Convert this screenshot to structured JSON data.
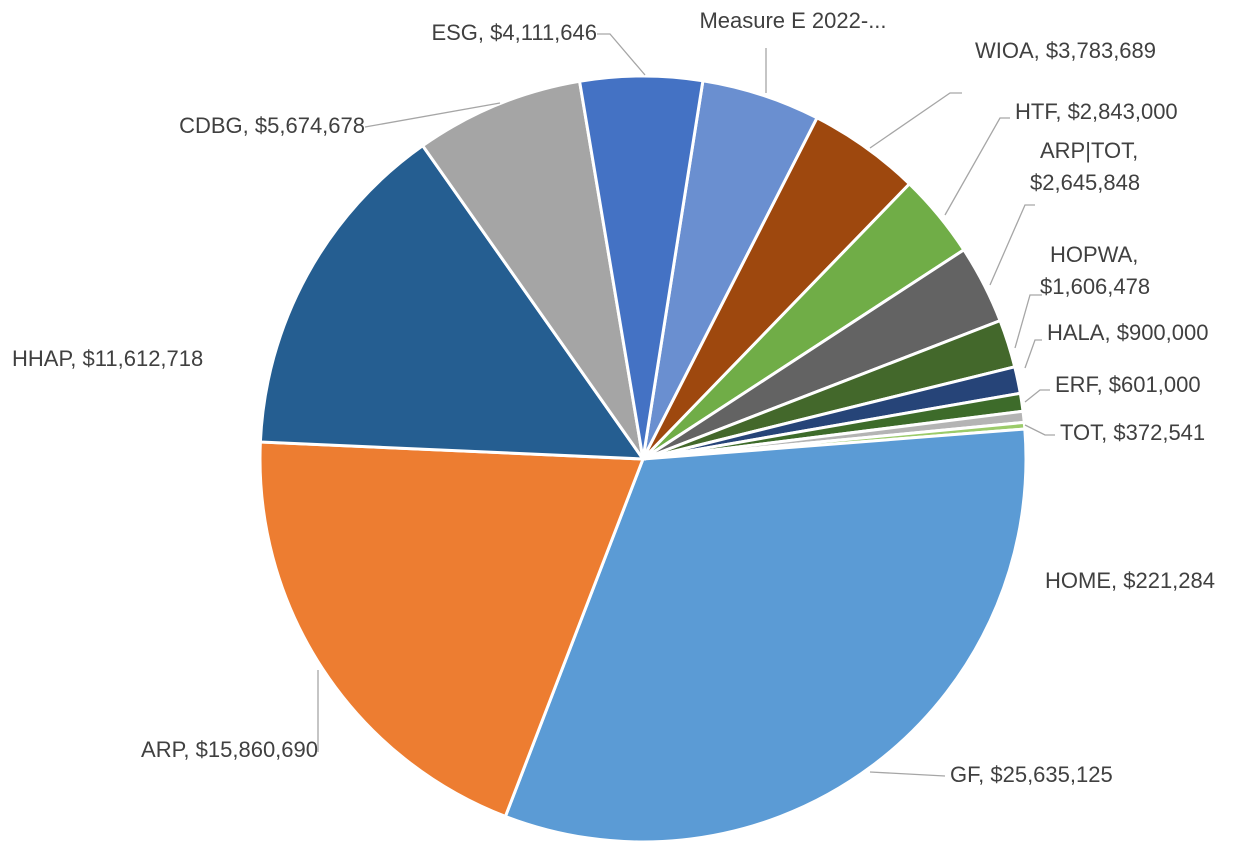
{
  "chart_data": {
    "type": "pie",
    "categories": [
      "Measure E 2022-...",
      "WIOA",
      "HTF",
      "ARP|TOT",
      "HOPWA",
      "HALA",
      "ERF",
      "TOT",
      "HOME",
      "GF",
      "ARP",
      "HHAP",
      "CDBG",
      "ESG"
    ],
    "values": [
      4000000,
      3783689,
      2843000,
      2645848,
      1606478,
      900000,
      601000,
      372541,
      221284,
      25635125,
      15860690,
      11612718,
      5674678,
      4111646
    ],
    "value_labels": [
      null,
      "$3,783,689",
      "$2,843,000",
      "$2,645,848",
      "$1,606,478",
      "$900,000",
      "$601,000",
      "$372,541",
      "$221,284",
      "$25,635,125",
      "$15,860,690",
      "$11,612,718",
      "$5,674,678",
      "$4,111,646"
    ],
    "label_separator": ", ",
    "colors": [
      "#6a8fd0",
      "#9e480e",
      "#70ad47",
      "#636363",
      "#43682b",
      "#264478",
      "#3d6b2a",
      "#b4b4b4",
      "#9bcb6a",
      "#5b9bd5",
      "#ed7d31",
      "#255e91",
      "#a5a5a5",
      "#4472c4"
    ]
  }
}
